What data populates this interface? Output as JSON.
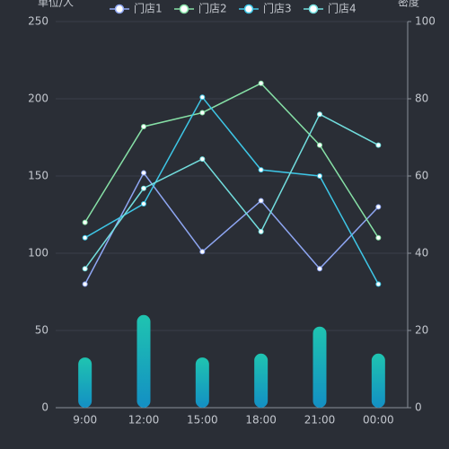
{
  "chart_data": {
    "type": "line",
    "ylabel": "单位/人",
    "y2label": "密度",
    "categories": [
      "9:00",
      "12:00",
      "15:00",
      "18:00",
      "21:00",
      "00:00"
    ],
    "series": [
      {
        "name": "门店1",
        "color": "#8ea6f2",
        "values": [
          80,
          152,
          101,
          134,
          90,
          130
        ]
      },
      {
        "name": "门店2",
        "color": "#86e0a6",
        "values": [
          120,
          182,
          191,
          210,
          170,
          110
        ]
      },
      {
        "name": "门店3",
        "color": "#3ec6e6",
        "values": [
          110,
          132,
          201,
          154,
          150,
          80
        ]
      },
      {
        "name": "门店4",
        "color": "#72dede",
        "values": [
          90,
          142,
          161,
          114,
          190,
          170
        ]
      },
      {
        "type": "bar",
        "axis": "y2",
        "color": "#1ab8b8",
        "values": [
          13,
          24,
          13,
          14,
          21,
          14
        ]
      }
    ],
    "ylim": [
      0,
      250
    ],
    "yticks": [
      0,
      50,
      100,
      150,
      200,
      250
    ],
    "y2lim": [
      0,
      100
    ],
    "y2ticks": [
      0,
      20,
      40,
      60,
      80,
      100
    ],
    "grid": true,
    "legend": "top"
  }
}
